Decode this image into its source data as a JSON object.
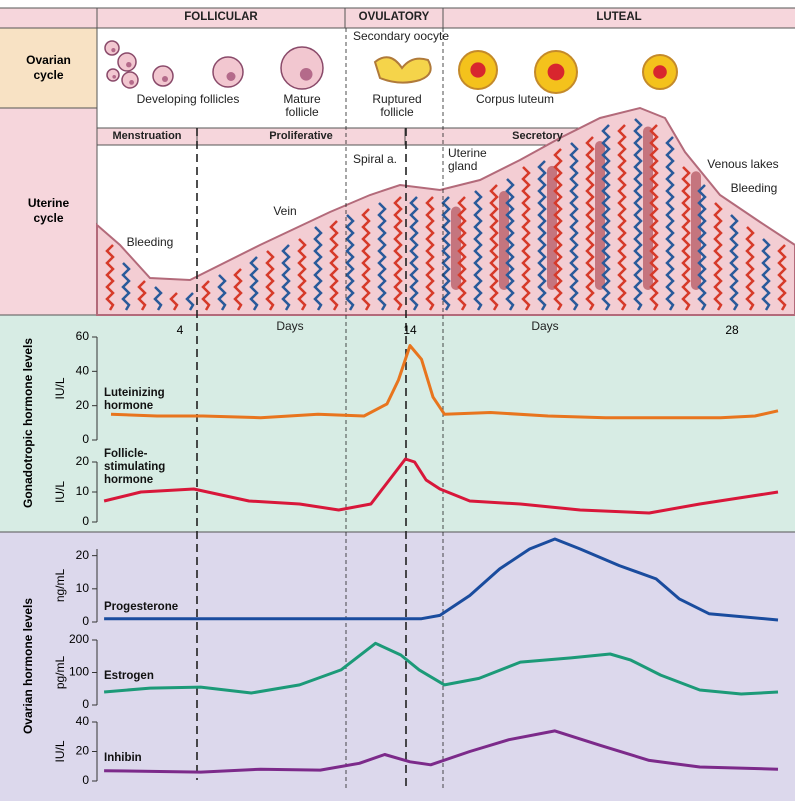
{
  "phases": [
    "FOLLICULAR",
    "OVULATORY",
    "LUTEAL"
  ],
  "subphases": [
    "Menstruation",
    "Proliferative",
    "Secretory"
  ],
  "rows": [
    "Ovarian cycle",
    "Uterine cycle"
  ],
  "ovary_labels": [
    "Developing follicles",
    "Mature follicle",
    "Secondary oocyte",
    "Ruptured follicle",
    "Corpus luteum"
  ],
  "uterus_labels": [
    "Bleeding",
    "Vein",
    "Spiral a.",
    "Uterine gland",
    "Venous lakes",
    "Bleeding"
  ],
  "day_axis": {
    "xlim": [
      0,
      30
    ],
    "xticks": [
      4,
      14,
      28
    ],
    "label": "Days"
  },
  "groups": [
    "Gonadotropic hormone levels",
    "Ovarian hormone levels"
  ],
  "chart_data": [
    {
      "type": "line",
      "y_label": "IU/L",
      "ylim": [
        0,
        60
      ],
      "yticks": [
        0,
        20,
        40,
        60
      ],
      "xlim": [
        0,
        30
      ],
      "x": [
        1,
        3,
        5,
        7.5,
        10,
        12,
        13,
        13.5,
        14,
        14.5,
        15,
        15.5,
        17.5,
        20,
        22.5,
        25,
        27.5,
        29,
        30
      ],
      "series": [
        {
          "name": "Luteinizing hormone",
          "color": "#e8751e",
          "values": [
            15,
            14,
            14,
            13,
            15,
            14,
            21,
            35,
            55,
            47,
            25,
            15,
            16,
            14,
            13,
            13,
            13,
            14,
            17
          ]
        }
      ]
    },
    {
      "type": "line",
      "y_label": "IU/L",
      "ylim": [
        0,
        20
      ],
      "yticks": [
        0,
        10,
        20
      ],
      "xlim": [
        0,
        30
      ],
      "x": [
        0.7,
        2.3,
        4.6,
        7,
        9.2,
        10.9,
        12.3,
        13.1,
        13.8,
        14.2,
        14.7,
        15.3,
        16.6,
        18.8,
        21.4,
        24.4,
        26.6,
        28.3,
        30
      ],
      "series": [
        {
          "name": "Follicle-stimulating hormone",
          "color": "#d8173a",
          "values": [
            7,
            10,
            11,
            7,
            6,
            4,
            6,
            14,
            21,
            20,
            14,
            11,
            7,
            6,
            4,
            3,
            6,
            8,
            10
          ]
        }
      ]
    },
    {
      "type": "line",
      "y_label": "ng/mL",
      "ylim": [
        0,
        22
      ],
      "yticks": [
        0,
        10,
        20
      ],
      "xlim": [
        0,
        30
      ],
      "x": [
        0.7,
        5,
        10,
        14.5,
        15.3,
        16.6,
        17.9,
        19.2,
        20.3,
        21.4,
        23.1,
        24.7,
        25.7,
        27,
        30
      ],
      "series": [
        {
          "name": "Progesterone",
          "color": "#1a4c9e",
          "values": [
            1,
            1,
            1,
            1,
            2,
            8,
            16,
            22,
            25,
            22,
            17,
            13,
            7,
            2.5,
            0.6
          ]
        }
      ]
    },
    {
      "type": "line",
      "y_label": "pg/mL",
      "ylim": [
        0,
        200
      ],
      "yticks": [
        0,
        100,
        200
      ],
      "xlim": [
        0,
        30
      ],
      "x": [
        0.7,
        2.7,
        4.9,
        7.1,
        9.2,
        11,
        12.5,
        13.6,
        14.4,
        15.5,
        17,
        18.8,
        21,
        22.7,
        23.6,
        24.9,
        26.6,
        28.4,
        30
      ],
      "series": [
        {
          "name": "Estrogen",
          "color": "#1c9a78",
          "values": [
            40,
            52,
            55,
            37,
            62,
            108,
            190,
            154,
            108,
            62,
            82,
            132,
            145,
            157,
            138,
            92,
            46,
            34,
            40
          ]
        }
      ]
    },
    {
      "type": "line",
      "y_label": "IU/L",
      "ylim": [
        0,
        40
      ],
      "yticks": [
        0,
        20,
        40
      ],
      "xlim": [
        0,
        30
      ],
      "x": [
        0.7,
        4.9,
        7.5,
        10.1,
        11.8,
        12.9,
        14,
        14.9,
        16.6,
        18.3,
        20.3,
        22.3,
        24.4,
        26.6,
        30
      ],
      "series": [
        {
          "name": "Inhibin",
          "color": "#7c2a8a",
          "values": [
            7,
            6,
            8,
            7.4,
            12,
            18,
            13,
            11,
            20,
            28,
            34,
            24,
            14,
            9.5,
            8
          ]
        }
      ]
    }
  ]
}
